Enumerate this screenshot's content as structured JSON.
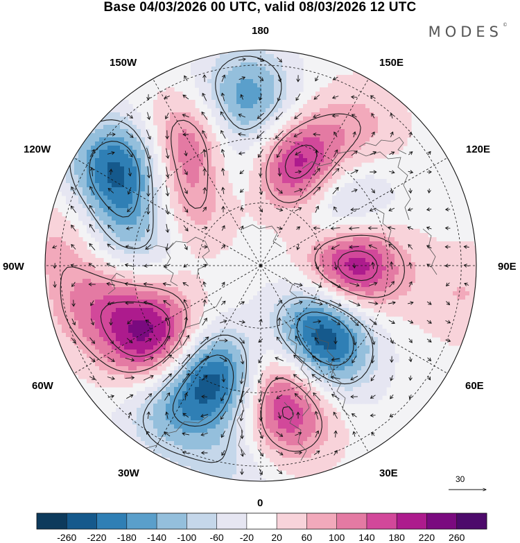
{
  "title": "Base 04/03/2026 00 UTC, valid 08/03/2026 12 UTC",
  "brand": "MODES",
  "brand_mark": "©",
  "longitude_labels": {
    "top": "180",
    "bottom": "0",
    "left": "90W",
    "right": "90E",
    "upper_left_1": "150W",
    "upper_left_2": "120W",
    "upper_right_1": "150E",
    "upper_right_2": "120E",
    "lower_left_1": "60W",
    "lower_left_2": "30W",
    "lower_right_1": "60E",
    "lower_right_2": "30E"
  },
  "reference_vector_label": "30",
  "colorbar": {
    "labels": [
      "-260",
      "-220",
      "-180",
      "-140",
      "-100",
      "-60",
      "-20",
      "20",
      "60",
      "100",
      "140",
      "180",
      "220",
      "260"
    ],
    "colors": [
      "#0d3a5c",
      "#15598c",
      "#2f7fb5",
      "#5a9fcb",
      "#94bfdc",
      "#c5d7ea",
      "#e6e6f2",
      "#ffffff",
      "#f8d3da",
      "#f2a9bb",
      "#e47aa3",
      "#d2489a",
      "#ad1b8d",
      "#7a0a7f",
      "#4d0a6b"
    ]
  },
  "anomaly_centers": [
    {
      "name": "pacific-low",
      "lon": 185,
      "colat": 0.78,
      "value": -170
    },
    {
      "name": "siberia-high",
      "lon": 160,
      "colat": 0.48,
      "value": 250
    },
    {
      "name": "bering-high-west",
      "lon": 145,
      "colat": 0.78,
      "value": 70
    },
    {
      "name": "east-asia-low",
      "lon": 128,
      "colat": 0.46,
      "value": -160
    },
    {
      "name": "west-alaska-low",
      "lon": 235,
      "colat": 0.8,
      "value": -230
    },
    {
      "name": "gulf-alaska-high",
      "lon": 210,
      "colat": 0.66,
      "value": 160
    },
    {
      "name": "alaska-high-small",
      "lon": 228,
      "colat": 0.44,
      "value": 110
    },
    {
      "name": "alaska-low-small",
      "lon": 192,
      "colat": 0.46,
      "value": -110
    },
    {
      "name": "canada-low",
      "lon": 255,
      "colat": 0.62,
      "value": -130
    },
    {
      "name": "central-asia-high",
      "lon": 90,
      "colat": 0.42,
      "value": 250
    },
    {
      "name": "far-east-high",
      "lon": 82,
      "colat": 0.95,
      "value": 60
    },
    {
      "name": "kara-low",
      "lon": 43,
      "colat": 0.4,
      "value": -240
    },
    {
      "name": "ural-low",
      "lon": 32,
      "colat": 0.55,
      "value": -110
    },
    {
      "name": "scandinavia-high",
      "lon": 12,
      "colat": 0.48,
      "value": 130
    },
    {
      "name": "europe-high",
      "lon": 10,
      "colat": 0.7,
      "value": 170
    },
    {
      "name": "atlantic-low",
      "lon": 338,
      "colat": 0.55,
      "value": -250
    },
    {
      "name": "atlantic-west-low",
      "lon": 328,
      "colat": 0.8,
      "value": -110
    },
    {
      "name": "greenland-high",
      "lon": 304,
      "colat": 0.6,
      "value": 230
    },
    {
      "name": "usa-high",
      "lon": 283,
      "colat": 0.78,
      "value": 110
    },
    {
      "name": "east-pacific-high",
      "lon": 262,
      "colat": 0.92,
      "value": 70
    },
    {
      "name": "atlantic-south-low",
      "lon": 352,
      "colat": 0.92,
      "value": -70
    }
  ]
}
